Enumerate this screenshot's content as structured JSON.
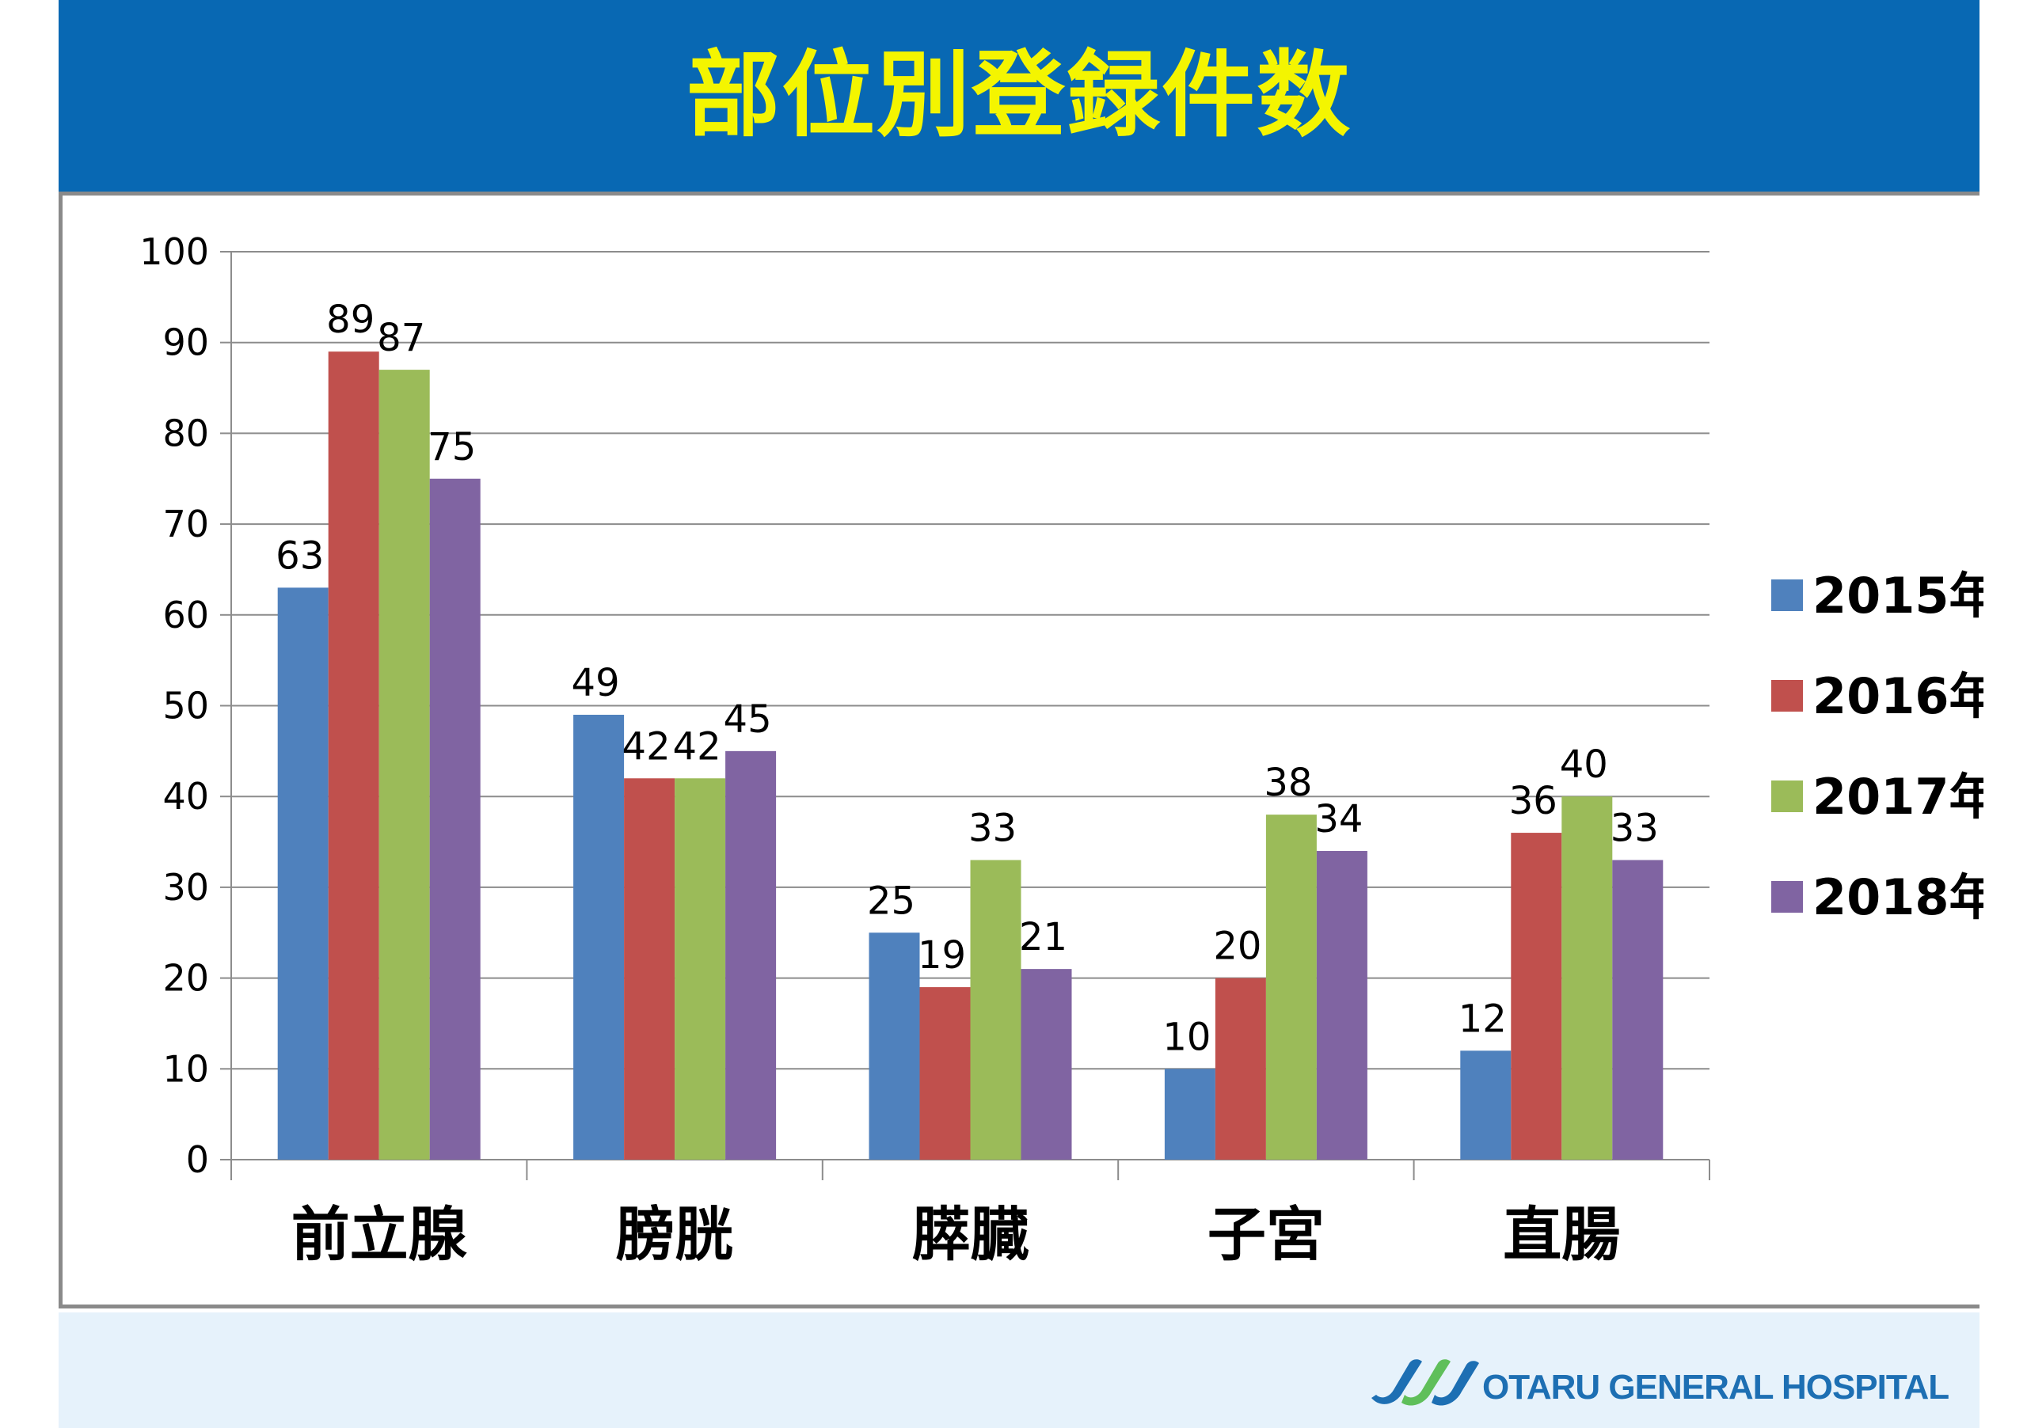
{
  "header": {
    "title": "部位別登録件数"
  },
  "footer": {
    "hospital_name": "OTARU GENERAL HOSPITAL"
  },
  "colors": {
    "header_bg": "#0868b3",
    "title_text": "#f4f500",
    "series_2015": "#4f81bd",
    "series_2016": "#c0504d",
    "series_2017": "#9bbb59",
    "series_2018": "#8064a2",
    "logo_blue": "#1d6fb3",
    "logo_green": "#5fbf5a"
  },
  "chart_data": {
    "type": "bar",
    "title": "",
    "xlabel": "",
    "ylabel": "",
    "categories": [
      "前立腺",
      "膀胱",
      "膵臓",
      "子宮",
      "直腸"
    ],
    "series": [
      {
        "name": "2015年",
        "color": "#4f81bd",
        "values": [
          63,
          49,
          25,
          10,
          12
        ]
      },
      {
        "name": "2016年",
        "color": "#c0504d",
        "values": [
          89,
          42,
          19,
          20,
          36
        ]
      },
      {
        "name": "2017年",
        "color": "#9bbb59",
        "values": [
          87,
          42,
          33,
          38,
          40
        ]
      },
      {
        "name": "2018年",
        "color": "#8064a2",
        "values": [
          75,
          45,
          21,
          34,
          33
        ]
      }
    ],
    "ylim": [
      0,
      100
    ],
    "yticks": [
      0,
      10,
      20,
      30,
      40,
      50,
      60,
      70,
      80,
      90,
      100
    ],
    "grid": true,
    "legend": "right",
    "data_labels": true
  }
}
